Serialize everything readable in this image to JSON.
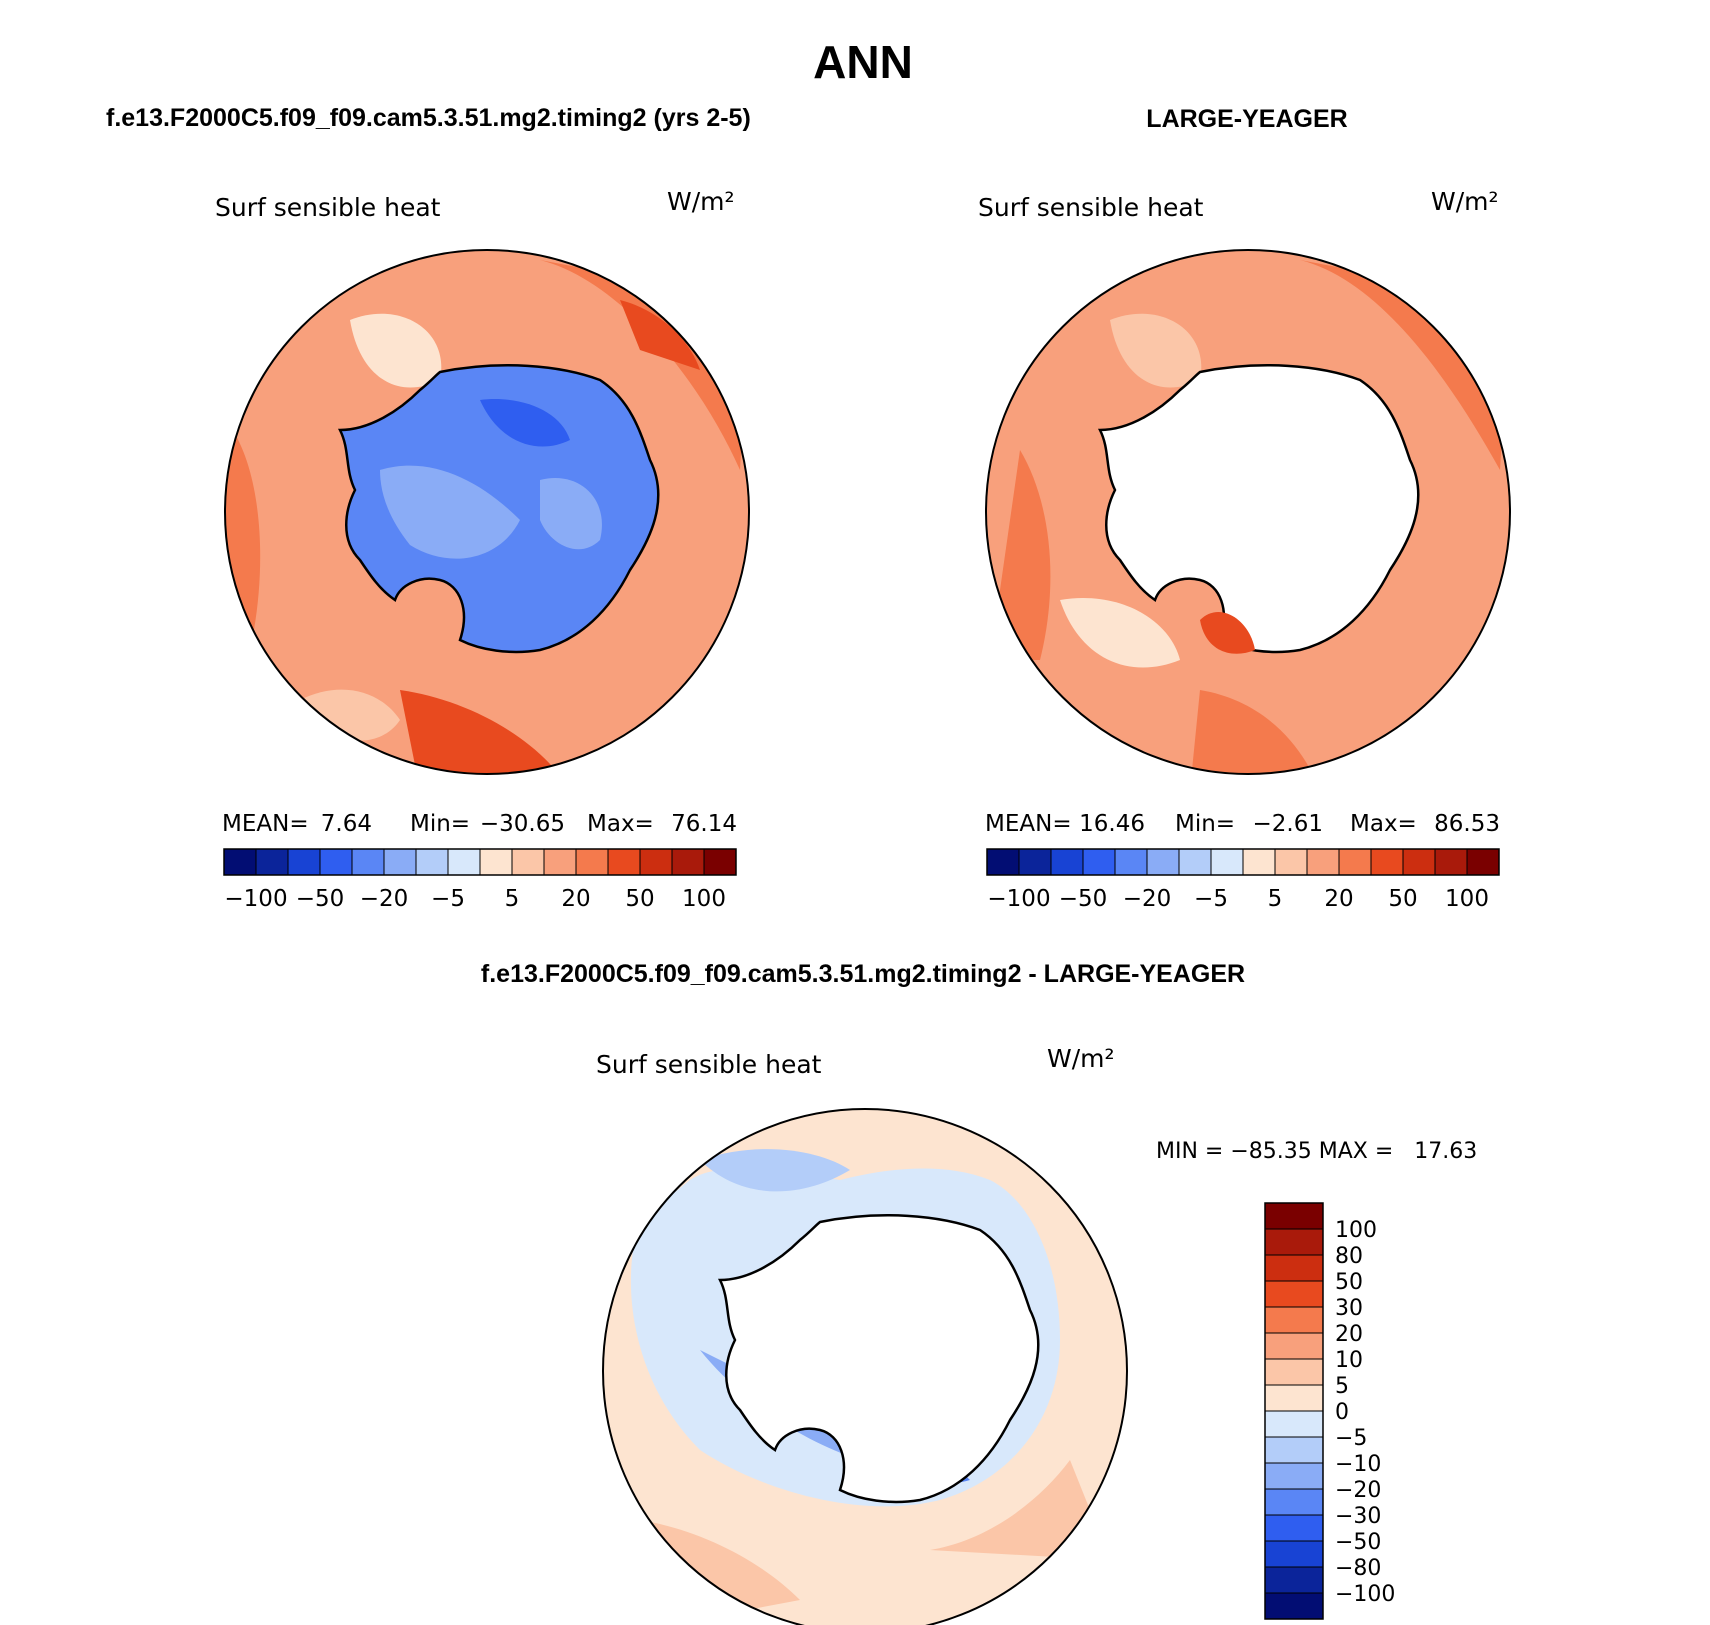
{
  "title": "ANN",
  "panels": {
    "top_left": {
      "case_name": "f.e13.F2000C5.f09_f09.cam5.3.51.mg2.timing2 (yrs 2-5)",
      "variable": "Surf sensible heat",
      "units": "W/m²",
      "stats": {
        "mean_label": "MEAN=",
        "mean": "7.64",
        "min_label": "Min=",
        "min": "−30.65",
        "max_label": "Max=",
        "max": "76.14"
      },
      "colorbar_ticks": [
        "−100",
        "−50",
        "−20",
        "−5",
        "5",
        "20",
        "50",
        "100"
      ]
    },
    "top_right": {
      "case_name": "LARGE-YEAGER",
      "variable": "Surf sensible heat",
      "units": "W/m²",
      "stats": {
        "mean_label": "MEAN=",
        "mean": "16.46",
        "min_label": "Min=",
        "min": "−2.61",
        "max_label": "Max=",
        "max": "86.53"
      },
      "colorbar_ticks": [
        "−100",
        "−50",
        "−20",
        "−5",
        "5",
        "20",
        "50",
        "100"
      ]
    },
    "bottom": {
      "case_name": "f.e13.F2000C5.f09_f09.cam5.3.51.mg2.timing2 - LARGE-YEAGER",
      "variable": "Surf sensible heat",
      "units": "W/m²",
      "stats_text": "MIN = −85.35 MAX =   17.63",
      "colorbar_ticks": [
        "100",
        "80",
        "50",
        "30",
        "20",
        "10",
        "5",
        "0",
        "−5",
        "−10",
        "−20",
        "−30",
        "−50",
        "−80",
        "−100"
      ]
    }
  },
  "chart_data": [
    {
      "type": "heatmap",
      "projection": "south-polar-stereographic",
      "title": "f.e13.F2000C5.f09_f09.cam5.3.51.mg2.timing2 (yrs 2-5)",
      "variable": "Surf sensible heat",
      "units": "W/m²",
      "mean": 7.64,
      "min": -30.65,
      "max": 76.14,
      "contour_levels": [
        -100,
        -80,
        -50,
        -30,
        -20,
        -10,
        -5,
        0,
        5,
        10,
        20,
        30,
        50,
        80,
        100
      ],
      "colors": [
        "#020d73",
        "#0b249a",
        "#1843d4",
        "#2f5ef0",
        "#5a86f5",
        "#8aacf6",
        "#b3cdf9",
        "#d8e8fb",
        "#fde4d0",
        "#fbc6a8",
        "#f8a07c",
        "#f47a4d",
        "#e84a1f",
        "#cc2e10",
        "#a91a0b",
        "#7a0000"
      ]
    },
    {
      "type": "heatmap",
      "projection": "south-polar-stereographic",
      "title": "LARGE-YEAGER",
      "variable": "Surf sensible heat",
      "units": "W/m²",
      "mean": 16.46,
      "min": -2.61,
      "max": 86.53,
      "contour_levels": [
        -100,
        -80,
        -50,
        -30,
        -20,
        -10,
        -5,
        0,
        5,
        10,
        20,
        30,
        50,
        80,
        100
      ],
      "colors": [
        "#020d73",
        "#0b249a",
        "#1843d4",
        "#2f5ef0",
        "#5a86f5",
        "#8aacf6",
        "#b3cdf9",
        "#d8e8fb",
        "#fde4d0",
        "#fbc6a8",
        "#f8a07c",
        "#f47a4d",
        "#e84a1f",
        "#cc2e10",
        "#a91a0b",
        "#7a0000"
      ]
    },
    {
      "type": "heatmap",
      "projection": "south-polar-stereographic",
      "title": "f.e13.F2000C5.f09_f09.cam5.3.51.mg2.timing2 - LARGE-YEAGER",
      "variable": "Surf sensible heat",
      "units": "W/m²",
      "min": -85.35,
      "max": 17.63,
      "contour_levels": [
        -100,
        -80,
        -50,
        -30,
        -20,
        -10,
        -5,
        0,
        5,
        10,
        20,
        30,
        50,
        80,
        100
      ],
      "colors": [
        "#020d73",
        "#0b249a",
        "#1843d4",
        "#2f5ef0",
        "#5a86f5",
        "#8aacf6",
        "#b3cdf9",
        "#d8e8fb",
        "#fde4d0",
        "#fbc6a8",
        "#f8a07c",
        "#f47a4d",
        "#e84a1f",
        "#cc2e10",
        "#a91a0b",
        "#7a0000"
      ]
    }
  ]
}
